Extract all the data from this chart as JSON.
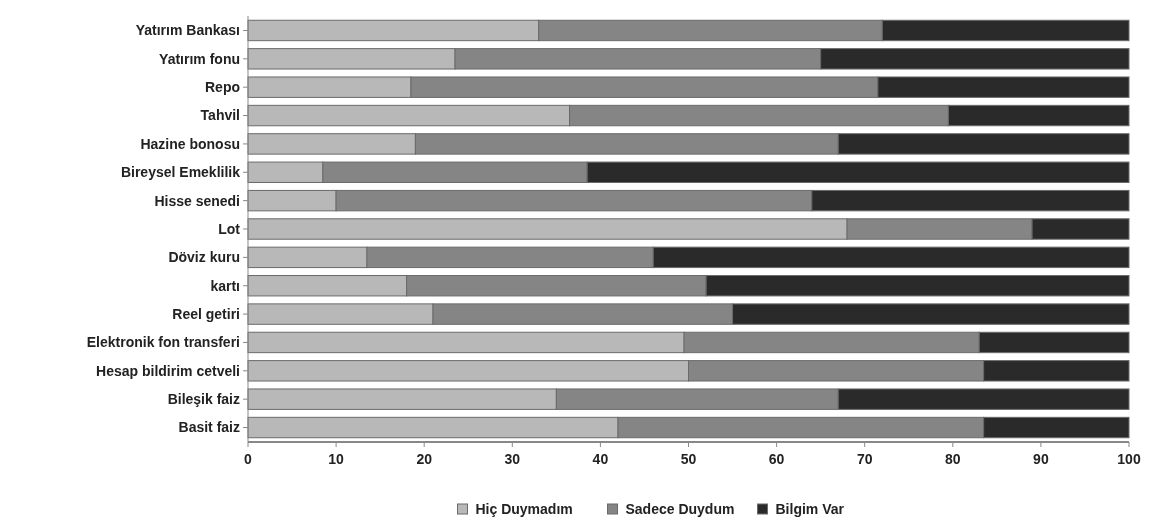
{
  "chart_data": {
    "type": "bar",
    "orientation": "horizontal",
    "stacked": true,
    "categories": [
      "Yatırım Bankası",
      "Yatırım fonu",
      "Repo",
      "Tahvil",
      "Hazine bonosu",
      "Bireysel Emeklilik",
      "Hisse senedi",
      "Lot",
      "Döviz kuru",
      "kartı",
      "Reel getiri",
      "Elektronik fon transferi",
      "Hesap bildirim cetveli",
      "Bileşik faiz",
      "Basit faiz"
    ],
    "series": [
      {
        "name": "Hiç Duymadım",
        "color": "#b8b8b8",
        "values": [
          33,
          23.5,
          18.5,
          36.5,
          19,
          8.5,
          10,
          68,
          13.5,
          18,
          21,
          49.5,
          50,
          35,
          42
        ]
      },
      {
        "name": "Sadece Duydum",
        "color": "#858585",
        "values": [
          39,
          41.5,
          53,
          43,
          48,
          30,
          54,
          21,
          32.5,
          34,
          34,
          33.5,
          33.5,
          32,
          41.5
        ]
      },
      {
        "name": "Bilgim Var",
        "color": "#2a2a2a",
        "values": [
          28,
          35,
          28.5,
          20.5,
          33,
          61.5,
          36,
          11,
          54,
          48,
          45,
          17,
          16.5,
          33,
          16.5
        ]
      }
    ],
    "xlim": [
      0,
      100
    ],
    "xticks": [
      0,
      10,
      20,
      30,
      40,
      50,
      60,
      70,
      80,
      90,
      100
    ],
    "legend": "bottom"
  }
}
